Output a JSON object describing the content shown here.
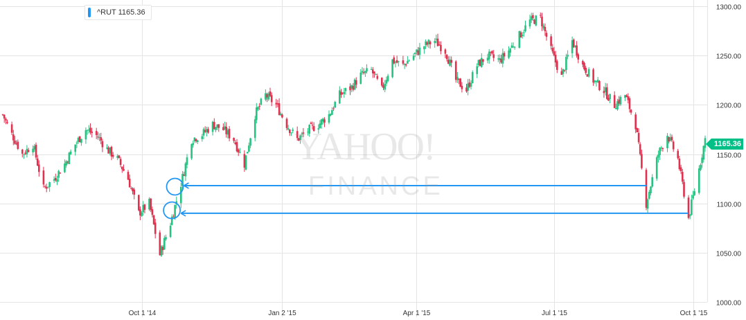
{
  "legend": {
    "label": "^RUT 1165.36",
    "color": "#2196f3"
  },
  "last_price": {
    "label": "1165.36",
    "color": "#00c087"
  },
  "watermark": {
    "line1": "YAHOO!",
    "line2": "FINANCE"
  },
  "colors": {
    "up": "#26c281",
    "down": "#e0304e",
    "grid": "#e4e4e4",
    "annotation": "#2196f3"
  },
  "chart_data": {
    "type": "candlestick",
    "title": "",
    "series_name": "^RUT",
    "ylim": [
      1000,
      1300
    ],
    "y_ticks": [
      1000,
      1050,
      1100,
      1150,
      1200,
      1250,
      1300
    ],
    "y_tick_labels": [
      "1000.00",
      "1050.00",
      "1100.00",
      "1150.00",
      "1200.00",
      "1250.00",
      "1300.00"
    ],
    "x_tick_labels": [
      "Oct 1 '14",
      "Jan 2 '15",
      "Apr 1 '15",
      "Jul 1 '15",
      "Oct 1 '15"
    ],
    "grid": true,
    "legend_position": "top-left",
    "close_path": [
      {
        "date": "Jul 1 '14",
        "close": 1190
      },
      {
        "date": "Jul 7 '14",
        "close": 1170
      },
      {
        "date": "Jul 14 '14",
        "close": 1150
      },
      {
        "date": "Jul 21 '14",
        "close": 1160
      },
      {
        "date": "Jul 28 '14",
        "close": 1115
      },
      {
        "date": "Aug 4 '14",
        "close": 1125
      },
      {
        "date": "Aug 11 '14",
        "close": 1140
      },
      {
        "date": "Aug 18 '14",
        "close": 1160
      },
      {
        "date": "Aug 25 '14",
        "close": 1175
      },
      {
        "date": "Sep 2 '14",
        "close": 1168
      },
      {
        "date": "Sep 8 '14",
        "close": 1155
      },
      {
        "date": "Sep 15 '14",
        "close": 1145
      },
      {
        "date": "Sep 22 '14",
        "close": 1125
      },
      {
        "date": "Sep 29 '14",
        "close": 1090
      },
      {
        "date": "Oct 6 '14",
        "close": 1100
      },
      {
        "date": "Oct 13 '14",
        "close": 1048
      },
      {
        "date": "Oct 20 '14",
        "close": 1080
      },
      {
        "date": "Oct 27 '14",
        "close": 1120
      },
      {
        "date": "Nov 3 '14",
        "close": 1165
      },
      {
        "date": "Nov 10 '14",
        "close": 1170
      },
      {
        "date": "Nov 17 '14",
        "close": 1180
      },
      {
        "date": "Nov 24 '14",
        "close": 1175
      },
      {
        "date": "Dec 1 '14",
        "close": 1165
      },
      {
        "date": "Dec 8 '14",
        "close": 1140
      },
      {
        "date": "Dec 15 '14",
        "close": 1190
      },
      {
        "date": "Dec 22 '14",
        "close": 1210
      },
      {
        "date": "Dec 29 '14",
        "close": 1200
      },
      {
        "date": "Jan 5 '15",
        "close": 1180
      },
      {
        "date": "Jan 12 '15",
        "close": 1165
      },
      {
        "date": "Jan 20 '15",
        "close": 1175
      },
      {
        "date": "Jan 26 '15",
        "close": 1180
      },
      {
        "date": "Feb 2 '15",
        "close": 1190
      },
      {
        "date": "Feb 9 '15",
        "close": 1210
      },
      {
        "date": "Feb 17 '15",
        "close": 1218
      },
      {
        "date": "Feb 23 '15",
        "close": 1230
      },
      {
        "date": "Mar 2 '15",
        "close": 1235
      },
      {
        "date": "Mar 9 '15",
        "close": 1215
      },
      {
        "date": "Mar 16 '15",
        "close": 1245
      },
      {
        "date": "Mar 23 '15",
        "close": 1240
      },
      {
        "date": "Mar 30 '15",
        "close": 1250
      },
      {
        "date": "Apr 6 '15",
        "close": 1260
      },
      {
        "date": "Apr 13 '15",
        "close": 1265
      },
      {
        "date": "Apr 20 '15",
        "close": 1255
      },
      {
        "date": "Apr 27 '15",
        "close": 1225
      },
      {
        "date": "May 4 '15",
        "close": 1215
      },
      {
        "date": "May 11 '15",
        "close": 1240
      },
      {
        "date": "May 18 '15",
        "close": 1250
      },
      {
        "date": "May 26 '15",
        "close": 1245
      },
      {
        "date": "Jun 1 '15",
        "close": 1255
      },
      {
        "date": "Jun 8 '15",
        "close": 1270
      },
      {
        "date": "Jun 15 '15",
        "close": 1285
      },
      {
        "date": "Jun 22 '15",
        "close": 1288
      },
      {
        "date": "Jun 29 '15",
        "close": 1255
      },
      {
        "date": "Jul 6 '15",
        "close": 1228
      },
      {
        "date": "Jul 13 '15",
        "close": 1265
      },
      {
        "date": "Jul 20 '15",
        "close": 1240
      },
      {
        "date": "Jul 27 '15",
        "close": 1225
      },
      {
        "date": "Aug 3 '15",
        "close": 1215
      },
      {
        "date": "Aug 10 '15",
        "close": 1200
      },
      {
        "date": "Aug 17 '15",
        "close": 1210
      },
      {
        "date": "Aug 24 '15",
        "close": 1180
      },
      {
        "date": "Aug 31 '15",
        "close": 1100
      },
      {
        "date": "Sep 8 '15",
        "close": 1150
      },
      {
        "date": "Sep 14 '15",
        "close": 1170
      },
      {
        "date": "Sep 21 '15",
        "close": 1145
      },
      {
        "date": "Sep 28 '15",
        "close": 1085
      },
      {
        "date": "Oct 5 '15",
        "close": 1135
      },
      {
        "date": "Oct 9 '15",
        "close": 1165.36
      }
    ],
    "annotations": [
      {
        "type": "arrow",
        "from_date": "Aug 31 '15",
        "to_date": "Oct 17 '14",
        "level": 1118,
        "circle_level": 1117
      },
      {
        "type": "arrow",
        "from_date": "Sep 28 '15",
        "to_date": "Oct 15 '14",
        "level": 1090,
        "circle_level": 1093
      }
    ]
  }
}
